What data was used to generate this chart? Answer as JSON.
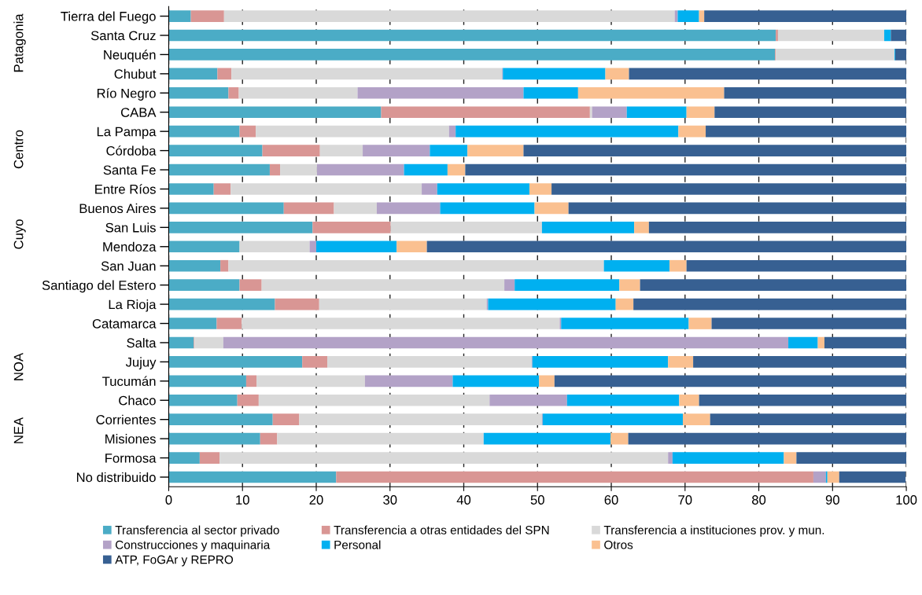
{
  "chart_data": {
    "type": "bar",
    "orientation": "horizontal",
    "stacked": true,
    "categories": [
      "Tierra del Fuego",
      "Santa Cruz",
      "Neuquén",
      "Chubut",
      "Río Negro",
      "CABA",
      "La Pampa",
      "Córdoba",
      "Santa Fe",
      "Entre Ríos",
      "Buenos Aires",
      "San Luis",
      "Mendoza",
      "San Juan",
      "Santiago del Estero",
      "La Rioja",
      "Catamarca",
      "Salta",
      "Jujuy",
      "Tucumán",
      "Chaco",
      "Corrientes",
      "Misiones",
      "Formosa",
      "No distribuido"
    ],
    "series": [
      {
        "name": "Transferencia al sector privado",
        "color": "#4bacc6",
        "values": [
          3.0,
          82.3,
          82.2,
          6.6,
          8.1,
          28.8,
          9.6,
          12.7,
          13.7,
          6.1,
          15.6,
          19.5,
          9.6,
          7.0,
          9.6,
          14.4,
          6.5,
          3.4,
          18.1,
          10.5,
          9.3,
          14.1,
          12.4,
          4.2,
          22.7
        ]
      },
      {
        "name": "Transferencia a otras entidades del SPN",
        "color": "#d99694",
        "values": [
          4.5,
          0.3,
          0.1,
          1.9,
          1.4,
          28.3,
          2.2,
          7.8,
          1.4,
          2.3,
          6.8,
          10.6,
          0,
          1.1,
          3.0,
          6.0,
          3.4,
          0.1,
          3.4,
          1.4,
          2.9,
          3.6,
          2.3,
          2.7,
          64.7
        ]
      },
      {
        "name": "Transferencia a instituciones prov. y mun.",
        "color": "#d9d9d9",
        "values": [
          61.1,
          14.4,
          16.1,
          36.7,
          16.1,
          0.3,
          26.2,
          5.8,
          5.0,
          25.9,
          5.8,
          20.5,
          9.5,
          50.9,
          32.9,
          22.7,
          43.1,
          3.9,
          27.7,
          14.7,
          31.3,
          32.9,
          28.0,
          60.8,
          null
        ]
      },
      {
        "name": "Construcciones y maquinaria",
        "color": "#b3a2c7",
        "values": [
          0.4,
          0,
          0,
          0.1,
          22.5,
          4.7,
          0.9,
          9.1,
          11.8,
          2.1,
          8.6,
          0,
          0.9,
          0,
          1.4,
          0.2,
          0.2,
          76.6,
          0.1,
          11.9,
          10.5,
          0.1,
          0,
          0.6,
          1.7
        ]
      },
      {
        "name": "Personal",
        "color": "#00b0f0",
        "values": [
          2.9,
          0.9,
          0.1,
          13.9,
          7.4,
          8.1,
          30.2,
          5.1,
          5.9,
          12.5,
          12.8,
          12.5,
          10.9,
          8.9,
          14.2,
          17.3,
          17.3,
          4.0,
          18.4,
          11.7,
          15.2,
          19.0,
          17.2,
          15.1,
          0.2
        ]
      },
      {
        "name": "Otros",
        "color": "#fac090",
        "values": [
          0.7,
          0,
          0,
          3.2,
          19.8,
          3.8,
          3.7,
          7.6,
          2.4,
          3.0,
          4.6,
          2.0,
          4.1,
          2.3,
          2.8,
          2.4,
          3.1,
          0.9,
          3.4,
          2.1,
          2.7,
          3.7,
          2.4,
          1.7,
          1.6
        ]
      },
      {
        "name": "ATP, FoGAr y REPRO",
        "color": "#376092",
        "values": [
          27.4,
          2.1,
          1.5,
          37.6,
          24.7,
          26.0,
          27.2,
          51.9,
          59.8,
          48.1,
          45.8,
          34.9,
          65.0,
          29.8,
          36.1,
          37.0,
          26.4,
          11.1,
          28.9,
          47.7,
          28.1,
          26.6,
          37.7,
          14.9,
          9.0
        ]
      }
    ],
    "xlim": [
      0,
      100
    ],
    "xticks": [
      0,
      10,
      20,
      30,
      40,
      50,
      60,
      70,
      80,
      90,
      100
    ],
    "grid": "x",
    "legend": "bottom",
    "annotations": [
      "Patagonia",
      "Centro",
      "Cuyo",
      "NOA",
      "NEA"
    ]
  }
}
